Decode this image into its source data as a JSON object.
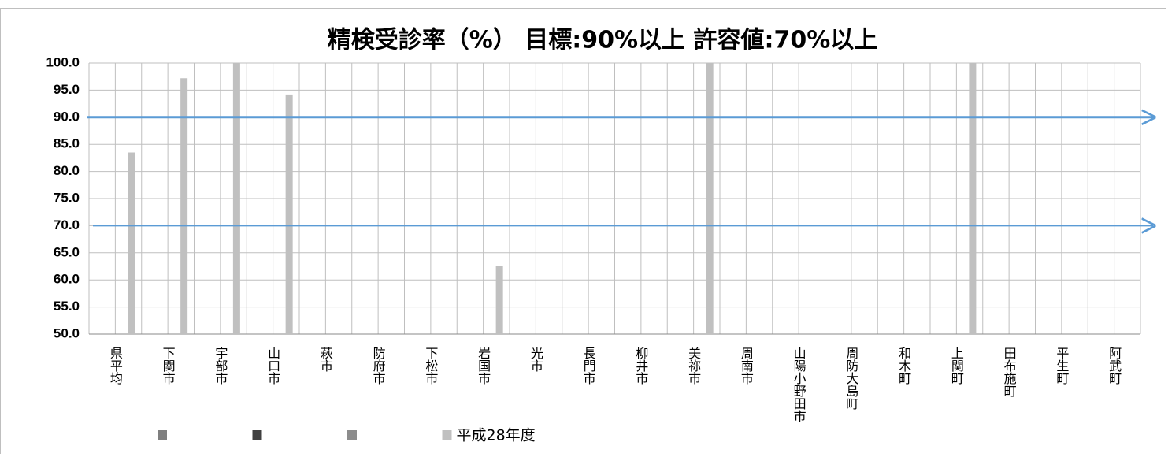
{
  "chart_data": {
    "type": "bar",
    "title": "精検受診率（%） 目標:90%以上 許容値:70%以上",
    "categories": [
      "県平均",
      "下関市",
      "宇部市",
      "山口市",
      "萩市",
      "防府市",
      "下松市",
      "岩国市",
      "光市",
      "長門市",
      "柳井市",
      "美祢市",
      "周南市",
      "山陽小野田市",
      "周防大島町",
      "和木町",
      "上関町",
      "田布施町",
      "平生町",
      "阿武町"
    ],
    "series": [
      {
        "color": "#7f7f7f",
        "values": [
          null,
          null,
          null,
          null,
          null,
          null,
          null,
          null,
          null,
          null,
          null,
          null,
          null,
          null,
          null,
          null,
          null,
          null,
          null,
          null
        ]
      },
      {
        "color": "#404040",
        "values": [
          null,
          null,
          null,
          null,
          null,
          null,
          null,
          null,
          null,
          null,
          null,
          null,
          null,
          null,
          null,
          null,
          null,
          null,
          null,
          null
        ]
      },
      {
        "color": "#8c8c8c",
        "values": [
          null,
          null,
          null,
          null,
          null,
          null,
          null,
          null,
          null,
          null,
          null,
          null,
          null,
          null,
          null,
          null,
          null,
          null,
          null,
          null
        ]
      },
      {
        "name": "平成28年度",
        "color": "#c0c0c0",
        "values": [
          83.5,
          97.2,
          100,
          94.2,
          50,
          50,
          50,
          62.5,
          50,
          50,
          50,
          100,
          50,
          50,
          50,
          50,
          100,
          50,
          50,
          50
        ]
      }
    ],
    "reference_lines": [
      90,
      70
    ],
    "reference_color": "#5b9bd5",
    "ylim": [
      50,
      100
    ],
    "yticks": [
      {
        "value": 50,
        "label": "50.0"
      },
      {
        "value": 55,
        "label": "55.0"
      },
      {
        "value": 60,
        "label": "60.0"
      },
      {
        "value": 65,
        "label": "65.0"
      },
      {
        "value": 70,
        "label": "70.0"
      },
      {
        "value": 75,
        "label": "75.0"
      },
      {
        "value": 80,
        "label": "80.0"
      },
      {
        "value": 85,
        "label": "85.0"
      },
      {
        "value": 90,
        "label": "90.0"
      },
      {
        "value": 95,
        "label": "95.0"
      },
      {
        "value": 100,
        "label": "100.0"
      }
    ],
    "grid": true,
    "legend": "bottom"
  }
}
